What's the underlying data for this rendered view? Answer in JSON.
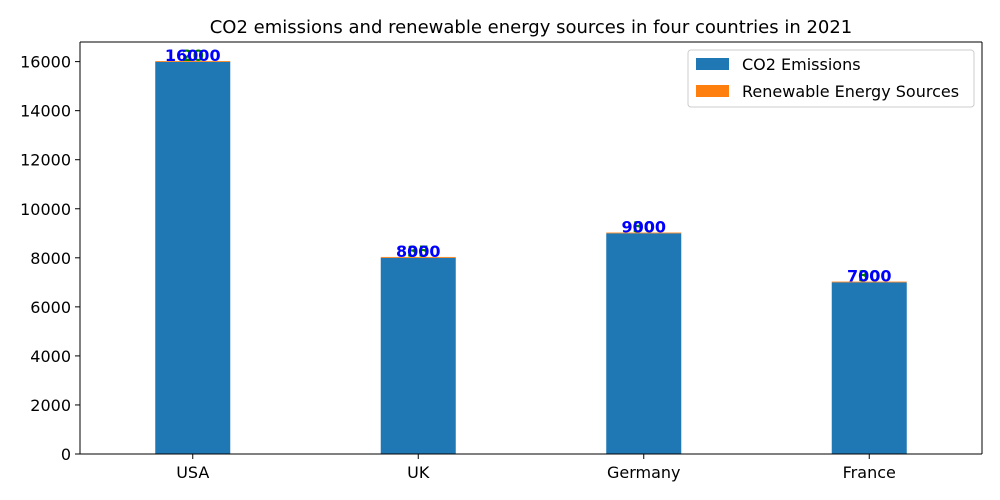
{
  "chart_data": {
    "type": "bar",
    "title": "CO2 emissions and renewable energy sources in four countries in 2021",
    "xlabel": "",
    "ylabel": "",
    "categories": [
      "USA",
      "UK",
      "Germany",
      "France"
    ],
    "series": [
      {
        "name": "CO2 Emissions",
        "values": [
          16000,
          8000,
          9000,
          7000
        ],
        "color": "#1f77b4",
        "label_color": "#0000ff"
      },
      {
        "name": "Renewable Energy Sources",
        "values": [
          20,
          35,
          30,
          30
        ],
        "color": "#ff7f0e",
        "label_color": "#008000"
      }
    ],
    "stacked": true,
    "ylim": [
      0,
      16800
    ],
    "yticks": [
      0,
      2000,
      4000,
      6000,
      8000,
      10000,
      12000,
      14000,
      16000
    ],
    "grid": false,
    "legend": "top-right"
  }
}
